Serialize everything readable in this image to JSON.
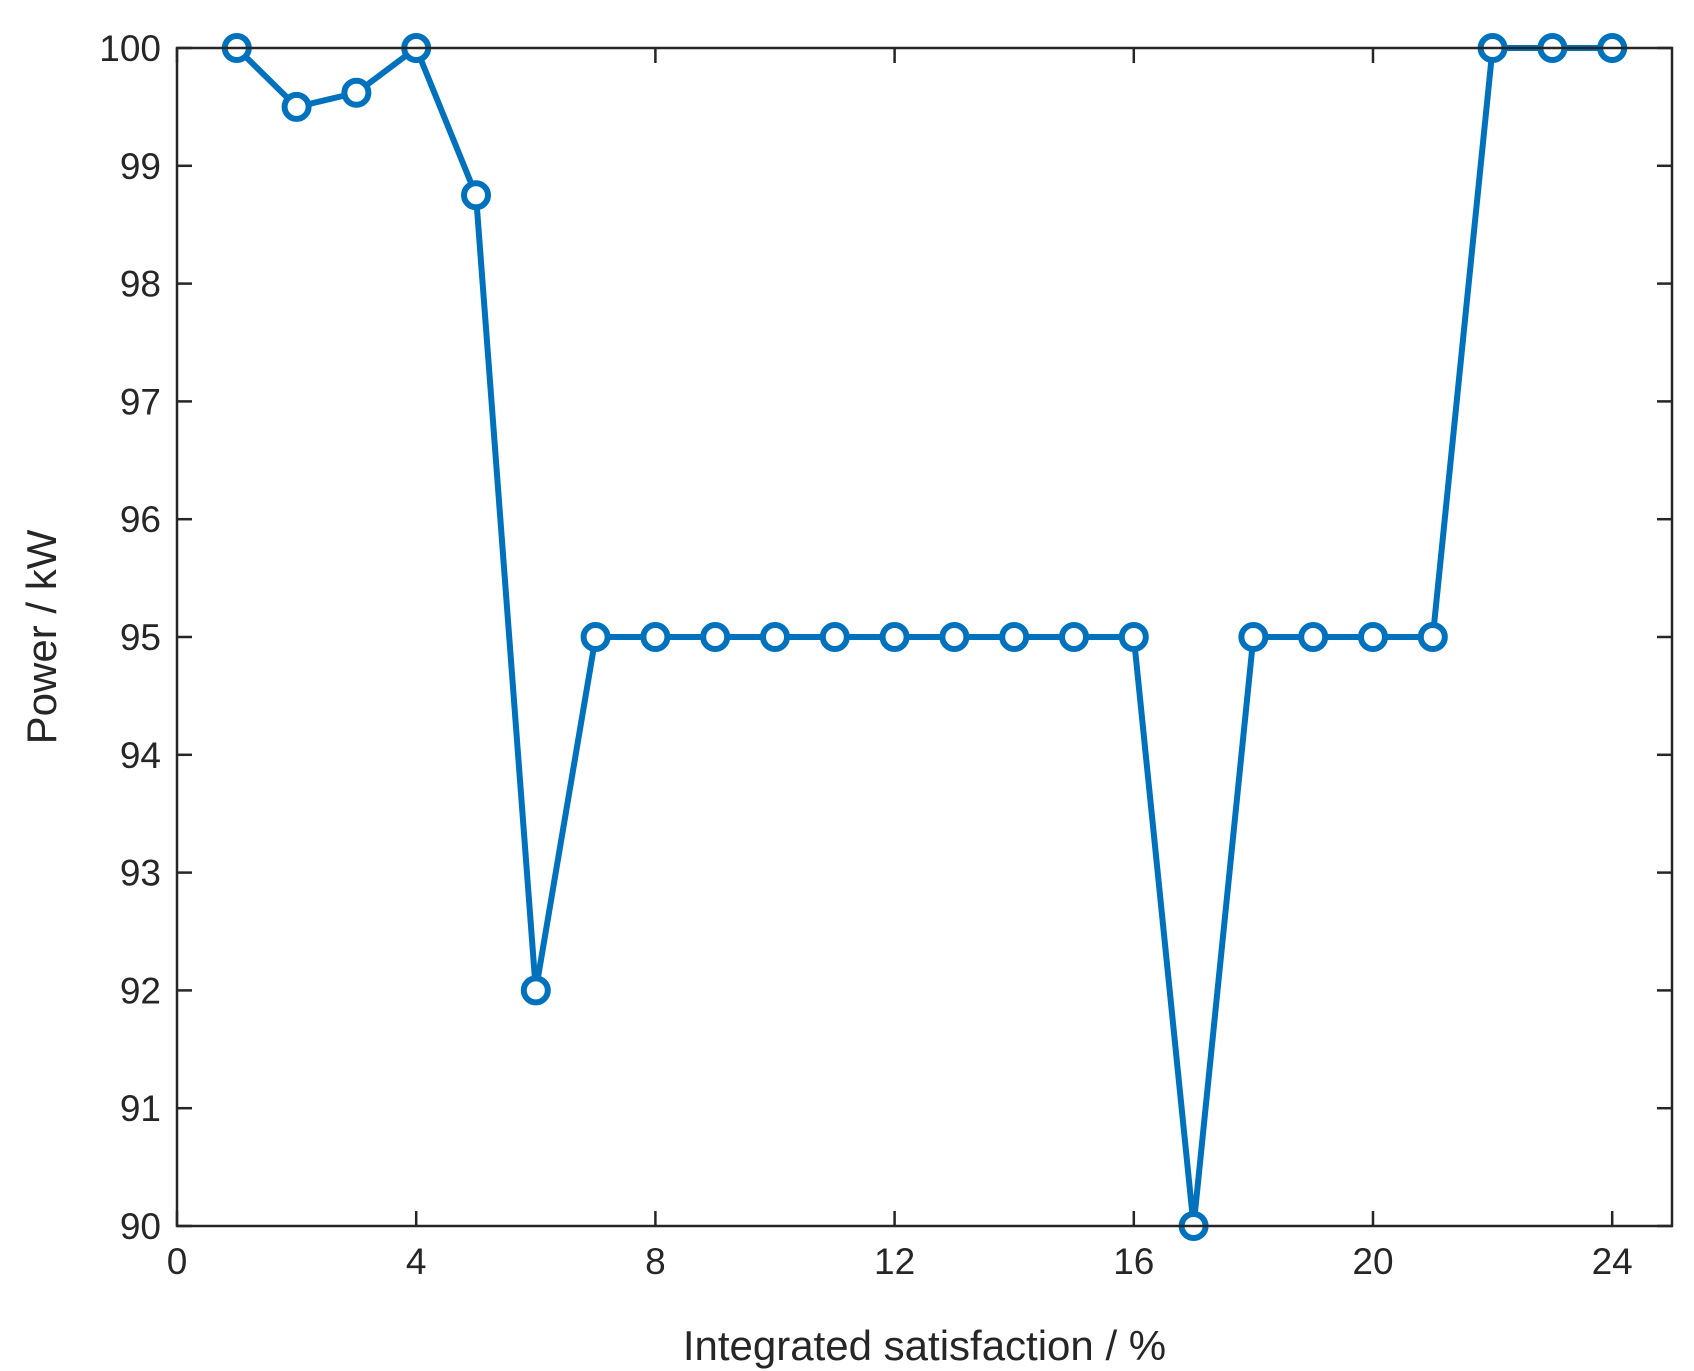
{
  "chart_data": {
    "type": "line",
    "xlabel": "Integrated satisfaction / %",
    "ylabel": "Power / kW",
    "xlim": [
      0,
      25
    ],
    "ylim": [
      90,
      100
    ],
    "xticks": [
      0,
      4,
      8,
      12,
      16,
      20,
      24
    ],
    "yticks": [
      90,
      91,
      92,
      93,
      94,
      95,
      96,
      97,
      98,
      99,
      100
    ],
    "grid": false,
    "series": [
      {
        "color": "#0072BD",
        "marker": "circle",
        "x": [
          1,
          2,
          3,
          4,
          5,
          6,
          7,
          8,
          9,
          10,
          11,
          12,
          13,
          14,
          15,
          16,
          17,
          18,
          19,
          20,
          21,
          22,
          23,
          24
        ],
        "y": [
          100,
          99.5,
          99.62,
          100,
          98.75,
          92,
          95,
          95,
          95,
          95,
          95,
          95,
          95,
          95,
          95,
          95,
          90,
          95,
          95,
          95,
          95,
          100,
          100,
          100
        ]
      }
    ]
  }
}
